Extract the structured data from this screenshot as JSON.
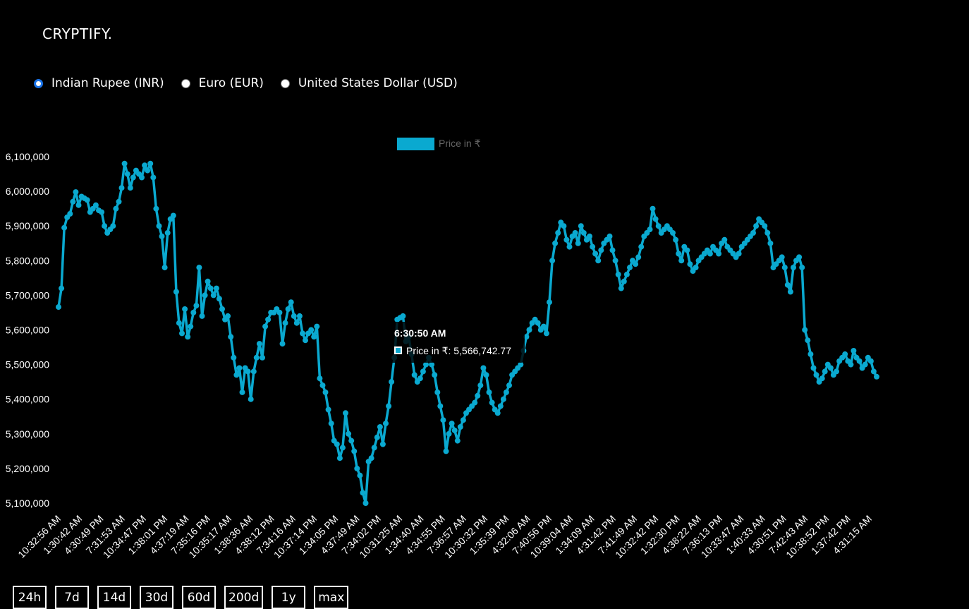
{
  "app": {
    "brand": "CRYPTIFY."
  },
  "currency": {
    "selected": "inr",
    "options": [
      {
        "id": "inr",
        "label": "Indian Rupee (INR)",
        "checked": true
      },
      {
        "id": "eur",
        "label": "Euro (EUR)",
        "checked": false
      },
      {
        "id": "usd",
        "label": "United States Dollar (USD)",
        "checked": false
      }
    ]
  },
  "tooltip": {
    "title": "6:30:50 AM",
    "label": "Price in ₹: 5,566,742.77"
  },
  "ranges": [
    "24h",
    "7d",
    "14d",
    "30d",
    "60d",
    "200d",
    "1y",
    "max"
  ],
  "chart_data": {
    "type": "line",
    "title": "",
    "xlabel": "",
    "ylabel": "",
    "ylim": [
      5080000,
      6120000
    ],
    "grid": false,
    "legend_position": "top-center",
    "colors": {
      "line": "#0aa9d0"
    },
    "y_ticks": [
      "5,100,000",
      "5,200,000",
      "5,300,000",
      "5,400,000",
      "5,500,000",
      "5,600,000",
      "5,700,000",
      "5,800,000",
      "5,900,000",
      "6,000,000",
      "6,100,000"
    ],
    "y_tick_values": [
      5100000,
      5200000,
      5300000,
      5400000,
      5500000,
      5600000,
      5700000,
      5800000,
      5900000,
      6000000,
      6100000
    ],
    "x_ticks": [
      "10:32:56 AM",
      "1:30:42 AM",
      "4:30:49 PM",
      "7:31:53 AM",
      "10:34:47 PM",
      "1:38:01 PM",
      "4:37:19 AM",
      "7:35:16 PM",
      "10:35:17 AM",
      "1:38:36 AM",
      "4:38:12 PM",
      "7:34:16 AM",
      "10:37:14 PM",
      "1:34:05 PM",
      "4:37:49 AM",
      "7:34:02 PM",
      "10:31:25 AM",
      "1:34:40 AM",
      "4:34:55 PM",
      "7:36:57 AM",
      "10:30:32 PM",
      "1:35:39 PM",
      "4:32:06 AM",
      "7:40:56 PM",
      "10:39:04 AM",
      "1:34:09 AM",
      "4:31:42 PM",
      "7:41:49 AM",
      "10:32:42 PM",
      "1:32:30 PM",
      "4:38:22 AM",
      "7:36:13 PM",
      "10:33:47 AM",
      "1:40:33 AM",
      "4:30:51 PM",
      "7:42:43 AM",
      "10:38:52 PM",
      "1:37:42 PM",
      "4:31:15 AM"
    ],
    "series": [
      {
        "name": "Price in ₹",
        "values": [
          5666000,
          5720000,
          5895000,
          5925000,
          5935000,
          5970000,
          5998000,
          5960000,
          5985000,
          5980000,
          5975000,
          5940000,
          5950000,
          5960000,
          5945000,
          5940000,
          5900000,
          5880000,
          5890000,
          5900000,
          5950000,
          5970000,
          6010000,
          6080000,
          6050000,
          6010000,
          6040000,
          6060000,
          6050000,
          6040000,
          6075000,
          6060000,
          6080000,
          6040000,
          5950000,
          5900000,
          5870000,
          5780000,
          5880000,
          5920000,
          5930000,
          5710000,
          5620000,
          5590000,
          5660000,
          5580000,
          5610000,
          5650000,
          5670000,
          5780000,
          5640000,
          5700000,
          5740000,
          5720000,
          5700000,
          5720000,
          5690000,
          5660000,
          5630000,
          5640000,
          5580000,
          5520000,
          5470000,
          5490000,
          5420000,
          5490000,
          5480000,
          5400000,
          5480000,
          5520000,
          5560000,
          5520000,
          5610000,
          5630000,
          5650000,
          5650000,
          5660000,
          5650000,
          5560000,
          5620000,
          5660000,
          5680000,
          5640000,
          5620000,
          5640000,
          5590000,
          5570000,
          5590000,
          5600000,
          5580000,
          5610000,
          5460000,
          5440000,
          5420000,
          5370000,
          5330000,
          5280000,
          5270000,
          5230000,
          5260000,
          5360000,
          5300000,
          5280000,
          5250000,
          5200000,
          5180000,
          5130000,
          5100000,
          5220000,
          5230000,
          5260000,
          5290000,
          5320000,
          5270000,
          5330000,
          5380000,
          5450000,
          5520000,
          5630000,
          5635000,
          5640000,
          5566742,
          5580000,
          5530000,
          5470000,
          5450000,
          5460000,
          5480000,
          5500000,
          5520000,
          5500000,
          5470000,
          5420000,
          5380000,
          5340000,
          5250000,
          5300000,
          5330000,
          5310000,
          5280000,
          5320000,
          5340000,
          5360000,
          5370000,
          5380000,
          5390000,
          5410000,
          5440000,
          5490000,
          5470000,
          5420000,
          5390000,
          5370000,
          5360000,
          5380000,
          5400000,
          5420000,
          5440000,
          5470000,
          5480000,
          5490000,
          5500000,
          5540000,
          5580000,
          5600000,
          5620000,
          5630000,
          5620000,
          5600000,
          5610000,
          5590000,
          5680000,
          5800000,
          5850000,
          5880000,
          5910000,
          5900000,
          5860000,
          5840000,
          5870000,
          5880000,
          5850000,
          5900000,
          5880000,
          5860000,
          5870000,
          5840000,
          5820000,
          5800000,
          5830000,
          5850000,
          5860000,
          5870000,
          5830000,
          5800000,
          5760000,
          5720000,
          5740000,
          5760000,
          5780000,
          5800000,
          5790000,
          5810000,
          5840000,
          5870000,
          5880000,
          5890000,
          5950000,
          5920000,
          5900000,
          5880000,
          5890000,
          5900000,
          5890000,
          5880000,
          5860000,
          5820000,
          5800000,
          5840000,
          5830000,
          5790000,
          5770000,
          5780000,
          5800000,
          5810000,
          5820000,
          5830000,
          5820000,
          5840000,
          5830000,
          5820000,
          5850000,
          5860000,
          5840000,
          5830000,
          5820000,
          5810000,
          5820000,
          5840000,
          5850000,
          5860000,
          5870000,
          5880000,
          5900000,
          5920000,
          5910000,
          5900000,
          5880000,
          5850000,
          5780000,
          5790000,
          5800000,
          5810000,
          5780000,
          5730000,
          5710000,
          5780000,
          5800000,
          5810000,
          5780000,
          5600000,
          5570000,
          5530000,
          5490000,
          5470000,
          5450000,
          5460000,
          5480000,
          5500000,
          5490000,
          5470000,
          5480000,
          5510000,
          5520000,
          5530000,
          5510000,
          5500000,
          5540000,
          5520000,
          5510000,
          5490000,
          5500000,
          5520000,
          5510000,
          5480000,
          5465000
        ]
      }
    ]
  }
}
